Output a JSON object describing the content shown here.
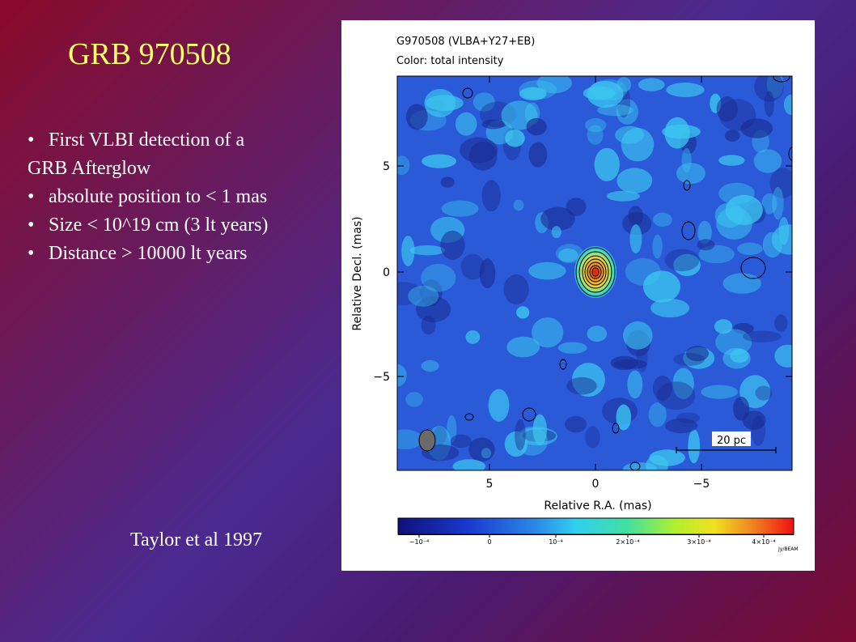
{
  "slide": {
    "title": "GRB 970508",
    "bullets": [
      {
        "bullet": "•",
        "text": "First VLBI detection of a"
      },
      {
        "bullet": "",
        "text": "GRB Afterglow"
      },
      {
        "bullet": "•",
        "text": "absolute position to < 1 mas"
      },
      {
        "bullet": "•",
        "text": "Size < 10^19 cm (3 lt years)"
      },
      {
        "bullet": "•",
        "text": "Distance > 10000 lt years"
      }
    ],
    "credit": "Taylor et al 1997",
    "colors": {
      "title": "#ffff66",
      "text": "#ffffff",
      "background_start": "#8a0a2a",
      "background_mid": "#4a2a90",
      "background_end": "#7a0a30"
    }
  },
  "figure": {
    "header_line1": "G970508 (VLBA+Y27+EB)",
    "header_line2": "Color: total intensity",
    "ylabel": "Relative Decl. (mas)",
    "xlabel": "Relative R.A. (mas)",
    "yticks": [
      "5",
      "0",
      "−5"
    ],
    "xticks": [
      "5",
      "0",
      "−5"
    ],
    "scalebar_label": "20 pc",
    "colorbar_ticks": [
      "−10⁻⁴",
      "0",
      "10⁻⁴",
      "2×10⁻⁴",
      "3×10⁻⁴",
      "4×10⁻⁴"
    ],
    "colorbar_unit": "Jy/BEAM",
    "colors": {
      "map_base": "#2a5ad8",
      "map_light": "#3cc8f0",
      "map_dark": "#1a2a90",
      "source_peak": "#e01010"
    }
  }
}
